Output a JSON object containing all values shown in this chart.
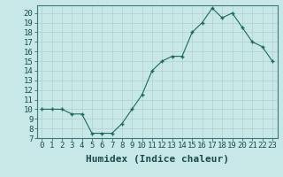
{
  "x": [
    0,
    1,
    2,
    3,
    4,
    5,
    6,
    7,
    8,
    9,
    10,
    11,
    12,
    13,
    14,
    15,
    16,
    17,
    18,
    19,
    20,
    21,
    22,
    23
  ],
  "y": [
    10,
    10,
    10,
    9.5,
    9.5,
    7.5,
    7.5,
    7.5,
    8.5,
    10.0,
    11.5,
    14.0,
    15.0,
    15.5,
    15.5,
    18.0,
    19.0,
    20.5,
    19.5,
    20.0,
    18.5,
    17.0,
    16.5,
    15.0
  ],
  "xlabel": "Humidex (Indice chaleur)",
  "ylim": [
    7,
    20.8
  ],
  "xlim": [
    -0.5,
    23.5
  ],
  "yticks": [
    7,
    8,
    9,
    10,
    11,
    12,
    13,
    14,
    15,
    16,
    17,
    18,
    19,
    20
  ],
  "xticks": [
    0,
    1,
    2,
    3,
    4,
    5,
    6,
    7,
    8,
    9,
    10,
    11,
    12,
    13,
    14,
    15,
    16,
    17,
    18,
    19,
    20,
    21,
    22,
    23
  ],
  "line_color": "#1a6b5a",
  "marker_color": "#1a6b5a",
  "bg_color": "#c8e8e8",
  "grid_color": "#b0d0d0",
  "xlabel_fontsize": 8,
  "tick_fontsize": 6.5
}
